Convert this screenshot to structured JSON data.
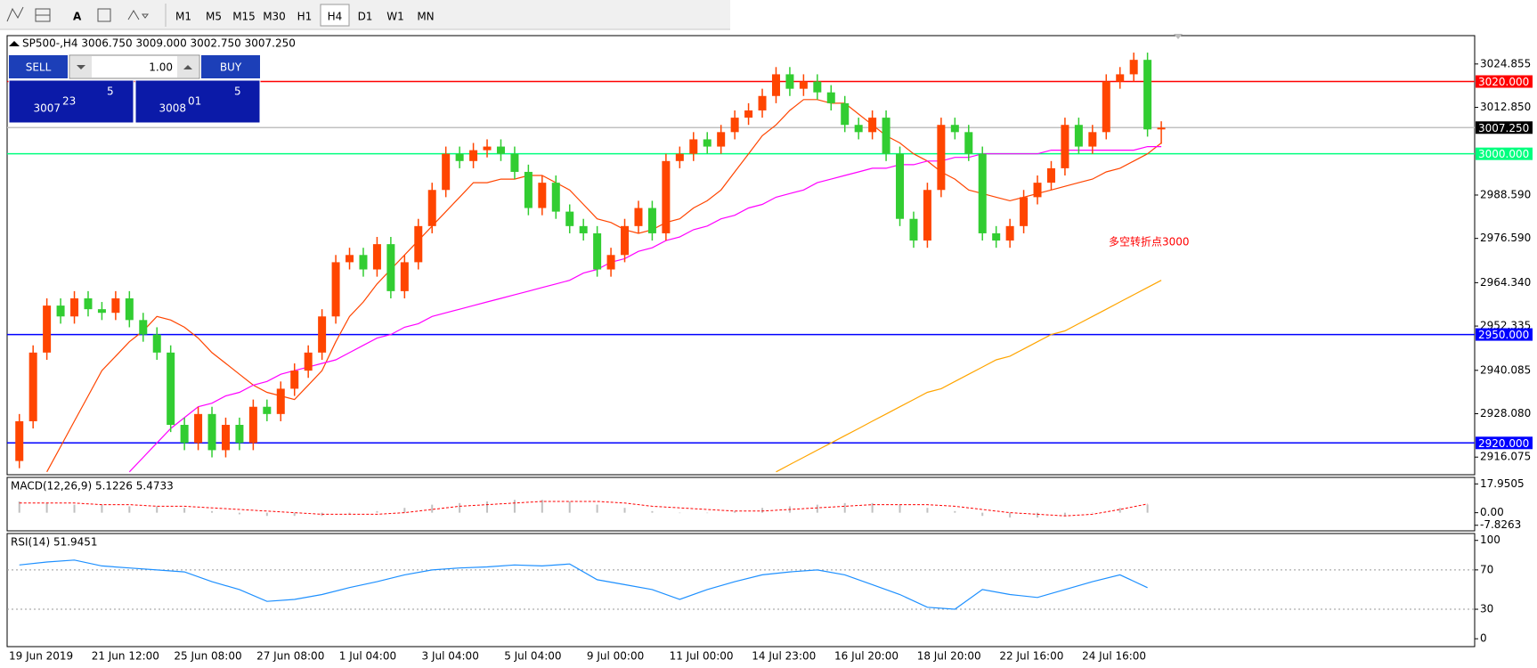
{
  "toolbar": {
    "text_tool": "A",
    "timeframes": [
      "M1",
      "M5",
      "M15",
      "M30",
      "H1",
      "H4",
      "D1",
      "W1",
      "MN"
    ],
    "active": "H4"
  },
  "trade_panel": {
    "sell": "SELL",
    "lots": "1.00",
    "buy": "BUY",
    "bid": {
      "big": "3007",
      "pips": "23",
      "point": "5"
    },
    "ask": {
      "big": "3008",
      "pips": "01",
      "point": "5"
    }
  },
  "chart_data": [
    {
      "type": "candlestick",
      "title": "SP500-,H4  3006.750 3009.000 3002.750 3007.250",
      "categories": [
        "19 Jun 2019",
        null,
        null,
        null,
        null,
        null,
        "21 Jun 12:00",
        null,
        null,
        null,
        null,
        null,
        "25 Jun 08:00",
        null,
        null,
        null,
        null,
        null,
        "27 Jun 08:00",
        null,
        null,
        null,
        null,
        null,
        "1 Jul 04:00",
        null,
        null,
        null,
        null,
        null,
        "3 Jul 04:00",
        null,
        null,
        null,
        null,
        null,
        "5 Jul 04:00",
        null,
        null,
        null,
        null,
        null,
        "9 Jul 00:00",
        null,
        null,
        null,
        null,
        null,
        "11 Jul 00:00",
        null,
        null,
        null,
        null,
        null,
        "14 Jul 23:00",
        null,
        null,
        null,
        null,
        null,
        "16 Jul 20:00",
        null,
        null,
        null,
        null,
        null,
        "18 Jul 20:00",
        null,
        null,
        null,
        null,
        null,
        "22 Jul 16:00",
        null,
        null,
        null,
        null,
        null,
        "24 Jul 16:00",
        null,
        null,
        null,
        null,
        null
      ],
      "open": [
        2915,
        2926,
        2945,
        2958,
        2955,
        2960,
        2957,
        2956,
        2960,
        2954,
        2950,
        2945,
        2925,
        2920,
        2928,
        2918,
        2925,
        2920,
        2930,
        2928,
        2935,
        2940,
        2945,
        2955,
        2970,
        2972,
        2968,
        2975,
        2962,
        2970,
        2980,
        2990,
        3000,
        2998,
        3001,
        3002,
        3000,
        2995,
        2985,
        2992,
        2984,
        2980,
        2978,
        2968,
        2972,
        2980,
        2985,
        2978,
        2998,
        3000,
        3004,
        3002,
        3006,
        3010,
        3012,
        3016,
        3022,
        3018,
        3020,
        3017,
        3014,
        3008,
        3006,
        3010,
        3000,
        2982,
        2976,
        2990,
        3008,
        3006,
        3000,
        2978,
        2976,
        2980,
        2988,
        2992,
        2996,
        3008,
        3002,
        3006,
        3020,
        3022,
        3026,
        3006.75
      ],
      "high": [
        2928,
        2947,
        2960,
        2960,
        2962,
        2962,
        2959,
        2962,
        2962,
        2956,
        2952,
        2947,
        2927,
        2930,
        2930,
        2927,
        2927,
        2932,
        2932,
        2937,
        2942,
        2947,
        2957,
        2972,
        2974,
        2974,
        2977,
        2977,
        2972,
        2982,
        2992,
        3002,
        3002,
        3003,
        3004,
        3004,
        3002,
        2997,
        2994,
        2994,
        2986,
        2982,
        2980,
        2974,
        2982,
        2987,
        2987,
        3000,
        3002,
        3006,
        3006,
        3008,
        3012,
        3014,
        3018,
        3024,
        3024,
        3022,
        3022,
        3019,
        3016,
        3010,
        3012,
        3012,
        3002,
        2984,
        2992,
        3010,
        3010,
        3008,
        3002,
        2980,
        2982,
        2990,
        2994,
        2998,
        3010,
        3010,
        3008,
        3022,
        3024,
        3028,
        3028,
        3009
      ],
      "low": [
        2913,
        2924,
        2943,
        2953,
        2953,
        2955,
        2954,
        2954,
        2952,
        2948,
        2943,
        2923,
        2918,
        2918,
        2916,
        2916,
        2918,
        2918,
        2926,
        2926,
        2933,
        2938,
        2943,
        2953,
        2968,
        2966,
        2966,
        2960,
        2960,
        2968,
        2978,
        2988,
        2996,
        2996,
        2999,
        2998,
        2993,
        2983,
        2983,
        2982,
        2978,
        2976,
        2966,
        2966,
        2970,
        2978,
        2976,
        2976,
        2996,
        2998,
        3000,
        3000,
        3004,
        3008,
        3010,
        3014,
        3016,
        3016,
        3015,
        3012,
        3006,
        3004,
        3004,
        2998,
        2980,
        2974,
        2974,
        2988,
        3004,
        2998,
        2976,
        2974,
        2974,
        2978,
        2986,
        2990,
        2994,
        3000,
        3000,
        3004,
        3018,
        3020,
        3004.75,
        3002.75
      ],
      "close": [
        2926,
        2945,
        2958,
        2955,
        2960,
        2957,
        2956,
        2960,
        2954,
        2950,
        2945,
        2925,
        2920,
        2928,
        2918,
        2925,
        2920,
        2930,
        2928,
        2935,
        2940,
        2945,
        2955,
        2970,
        2972,
        2968,
        2975,
        2962,
        2970,
        2980,
        2990,
        3000,
        2998,
        3001,
        3002,
        3000,
        2995,
        2985,
        2992,
        2984,
        2980,
        2978,
        2968,
        2972,
        2980,
        2985,
        2978,
        2998,
        3000,
        3004,
        3002,
        3006,
        3010,
        3012,
        3016,
        3022,
        3018,
        3020,
        3017,
        3014,
        3008,
        3006,
        3010,
        3000,
        2982,
        2976,
        2990,
        3008,
        3006,
        3000,
        2978,
        2976,
        2980,
        2988,
        2992,
        2996,
        3008,
        3002,
        3006,
        3020,
        3022,
        3026,
        3006.75,
        3007.25
      ],
      "up_color": "#ff4500",
      "down_color": "#32cd32",
      "series": [
        {
          "color": "#ff4500",
          "values": [
            null,
            null,
            2912,
            2919,
            2926,
            2933,
            2940,
            2944,
            2948,
            2951,
            2955,
            2954,
            2952,
            2949,
            2945,
            2942,
            2939,
            2936,
            2934,
            2933,
            2932,
            2936,
            2940,
            2948,
            2955,
            2959,
            2964,
            2968,
            2972,
            2976,
            2980,
            2984,
            2988,
            2992,
            2992,
            2993,
            2993,
            2994,
            2994,
            2992,
            2990,
            2986,
            2982,
            2981,
            2979,
            2978,
            2979,
            2981,
            2982,
            2985,
            2987,
            2990,
            2995,
            3000,
            3005,
            3008,
            3012,
            3015,
            3015,
            3014,
            3014,
            3011,
            3008,
            3005,
            3003,
            3000,
            2998,
            2995,
            2993,
            2990,
            2989,
            2988,
            2987,
            2988,
            2989,
            2990,
            2991,
            2992,
            2993,
            2995,
            2996,
            2998,
            3000,
            3003
          ]
        },
        {
          "color": "#ff00ff",
          "values": [
            null,
            null,
            null,
            null,
            null,
            null,
            null,
            null,
            2912,
            2916,
            2920,
            2924,
            2927,
            2930,
            2931,
            2933,
            2934,
            2936,
            2937,
            2939,
            2940,
            2941,
            2942,
            2943,
            2945,
            2947,
            2949,
            2950,
            2952,
            2953,
            2955,
            2956,
            2957,
            2958,
            2959,
            2960,
            2961,
            2962,
            2963,
            2964,
            2965,
            2967,
            2968,
            2970,
            2971,
            2973,
            2974,
            2976,
            2977,
            2979,
            2980,
            2982,
            2983,
            2985,
            2986,
            2988,
            2989,
            2990,
            2992,
            2993,
            2994,
            2995,
            2996,
            2996,
            2997,
            2997,
            2998,
            2998,
            2999,
            2999,
            3000,
            3000,
            3000,
            3000,
            3000,
            3001,
            3001,
            3001,
            3001,
            3001,
            3001,
            3001,
            3002,
            3002
          ]
        },
        {
          "color": "#ffa500",
          "values": [
            null,
            null,
            null,
            null,
            null,
            null,
            null,
            null,
            null,
            null,
            null,
            null,
            null,
            null,
            null,
            null,
            null,
            null,
            null,
            null,
            null,
            null,
            null,
            null,
            null,
            null,
            null,
            null,
            null,
            null,
            null,
            null,
            null,
            null,
            null,
            null,
            null,
            null,
            null,
            null,
            null,
            null,
            null,
            null,
            null,
            null,
            null,
            null,
            null,
            null,
            null,
            null,
            null,
            null,
            null,
            2912,
            2914,
            2916,
            2918,
            2920,
            2922,
            2924,
            2926,
            2928,
            2930,
            2932,
            2934,
            2935,
            2937,
            2939,
            2941,
            2943,
            2944,
            2946,
            2948,
            2950,
            2951,
            2953,
            2955,
            2957,
            2959,
            2961,
            2963,
            2965
          ]
        }
      ],
      "levels": [
        {
          "value": 3020,
          "label": "3020.000",
          "color": "#ff0000",
          "label_color": "#ff0000"
        },
        {
          "value": 3007.25,
          "label": "3007.250",
          "color": "#c0c0c0",
          "label_color": "#000000"
        },
        {
          "value": 3000,
          "label": "3000.000",
          "color": "#00ff7f",
          "label_color": "#00ff7f"
        },
        {
          "value": 2950,
          "label": "2950.000",
          "color": "#0000ff",
          "label_color": "#0000ff"
        },
        {
          "value": 2920,
          "label": "2920.000",
          "color": "#0000ff",
          "label_color": "#0000ff"
        }
      ],
      "annotation": {
        "text": "多空转折点3000",
        "color": "#ff0000"
      },
      "ylim": [
        2911.2,
        3032.7
      ],
      "yticks": [
        3024.855,
        {
          "value": 3012.85,
          "label": "3012.850"
        },
        {
          "value": 2988.59,
          "label": "2988.590"
        },
        {
          "value": 2976.59,
          "label": "2976.590"
        },
        {
          "value": 2964.34,
          "label": "2964.340"
        },
        2952.335,
        2940.085,
        {
          "value": 2928.08,
          "label": "2928.080"
        },
        2916.075
      ]
    },
    {
      "type": "macd",
      "title": "MACD(12,26,9) 5.1226 5.4733",
      "values": [
        7,
        6,
        5,
        5,
        4,
        4,
        3,
        1,
        -1,
        -2,
        -2,
        -2,
        -1,
        1,
        3,
        5,
        6,
        7,
        8,
        8,
        7,
        5,
        3,
        1,
        0,
        0,
        1,
        3,
        4,
        5,
        6,
        6,
        5,
        3,
        1,
        -2,
        -3,
        -3,
        -2,
        0,
        3,
        5.1226
      ],
      "color": "#c0c0c0",
      "signal": {
        "color": "#ff0000",
        "values": [
          6,
          6,
          6,
          5,
          5,
          4,
          4,
          3,
          2,
          1,
          0,
          -1,
          -1,
          -1,
          0,
          2,
          4,
          5,
          6,
          7,
          7,
          7,
          6,
          4,
          3,
          2,
          1,
          1,
          2,
          3,
          4,
          5,
          5,
          5,
          4,
          2,
          0,
          -1,
          -2,
          -1,
          2,
          5.4733
        ]
      },
      "ylim": [
        -11.3,
        22
      ],
      "yticks": [
        17.9505,
        {
          "value": 0,
          "label": "0.00"
        },
        -7.8263
      ]
    },
    {
      "type": "line",
      "title": "RSI(14) 51.9451",
      "values": [
        75,
        78,
        80,
        74,
        72,
        70,
        68,
        58,
        50,
        38,
        40,
        45,
        52,
        58,
        65,
        70,
        72,
        73,
        75,
        74,
        76,
        60,
        55,
        50,
        40,
        50,
        58,
        65,
        68,
        70,
        65,
        55,
        45,
        32,
        30,
        50,
        45,
        42,
        50,
        58,
        65,
        51.9451
      ],
      "color": "#1e90ff",
      "levels": [
        70,
        30
      ],
      "ylim": [
        -8,
        107
      ],
      "yticks": [
        100,
        70,
        30,
        0
      ]
    }
  ]
}
